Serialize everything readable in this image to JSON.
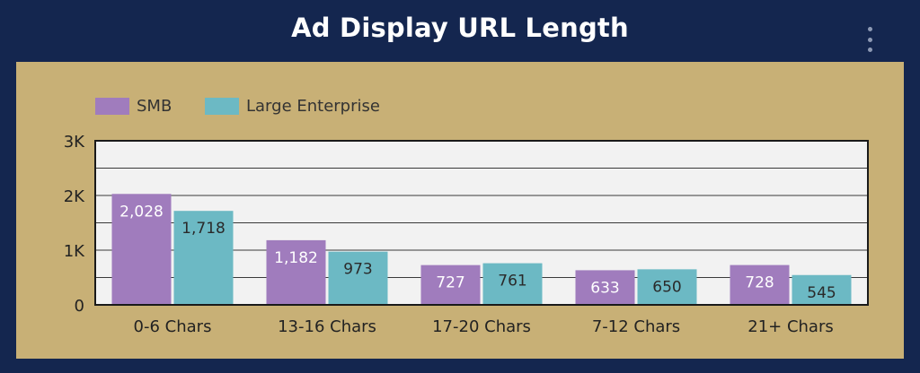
{
  "header": {
    "title": "Ad Display URL Length"
  },
  "colors": {
    "background": "#14264f",
    "panel": "#c8b076",
    "plot_area": "#f2f2f2",
    "smb": "#a07cbd",
    "large_enterprise": "#6cb9c4"
  },
  "icons": {
    "menu": "more-vertical-icon"
  },
  "chart_data": {
    "type": "bar",
    "title": "Ad Display URL Length",
    "xlabel": "",
    "ylabel": "",
    "categories": [
      "0-6 Chars",
      "13-16 Chars",
      "17-20 Chars",
      "7-12 Chars",
      "21+ Chars"
    ],
    "series": [
      {
        "name": "SMB",
        "values": [
          2028,
          1182,
          727,
          633,
          728
        ],
        "labels": [
          "2,028",
          "1,182",
          "727",
          "633",
          "728"
        ],
        "color": "#a07cbd"
      },
      {
        "name": "Large Enterprise",
        "values": [
          1718,
          973,
          761,
          650,
          545
        ],
        "labels": [
          "1,718",
          "973",
          "761",
          "650",
          "545"
        ],
        "color": "#6cb9c4"
      }
    ],
    "ylim": [
      0,
      3000
    ],
    "yticks": [
      0,
      1000,
      2000,
      3000
    ],
    "ytick_labels": [
      "0",
      "1K",
      "2K",
      "3K"
    ],
    "grid": true,
    "legend_position": "top-left"
  }
}
